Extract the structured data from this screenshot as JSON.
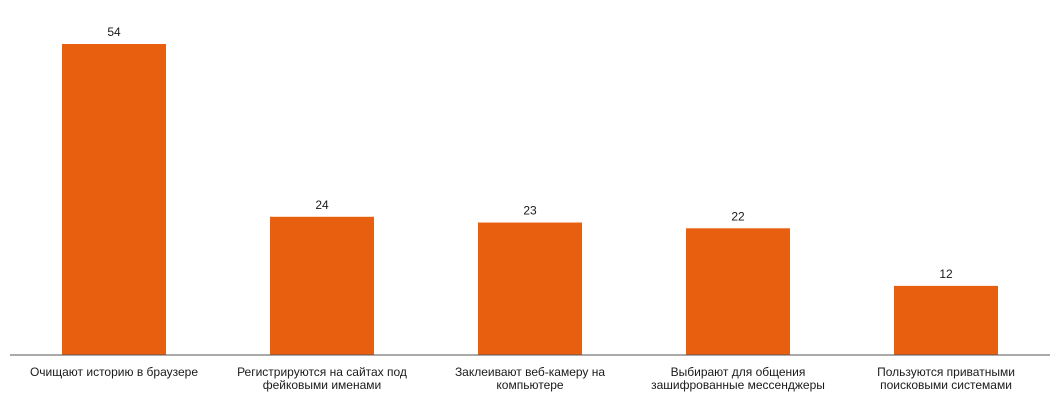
{
  "chart_data": {
    "type": "bar",
    "categories": [
      [
        "Очищают историю в браузере"
      ],
      [
        "Регистрируются на сайтах под",
        "фейковыми именами"
      ],
      [
        "Заклеивают веб-камеру на",
        "компьютере"
      ],
      [
        "Выбирают для общения",
        "зашифрованные мессенджеры"
      ],
      [
        "Пользуются приватными",
        "поисковыми системами"
      ]
    ],
    "values": [
      54,
      24,
      23,
      22,
      12
    ],
    "value_labels": [
      "54",
      "24",
      "23",
      "22",
      "12"
    ],
    "ylim": [
      0,
      60
    ],
    "grid": false,
    "legend": "none",
    "bar_color": "#e8600f",
    "axis_color": "#555555"
  }
}
